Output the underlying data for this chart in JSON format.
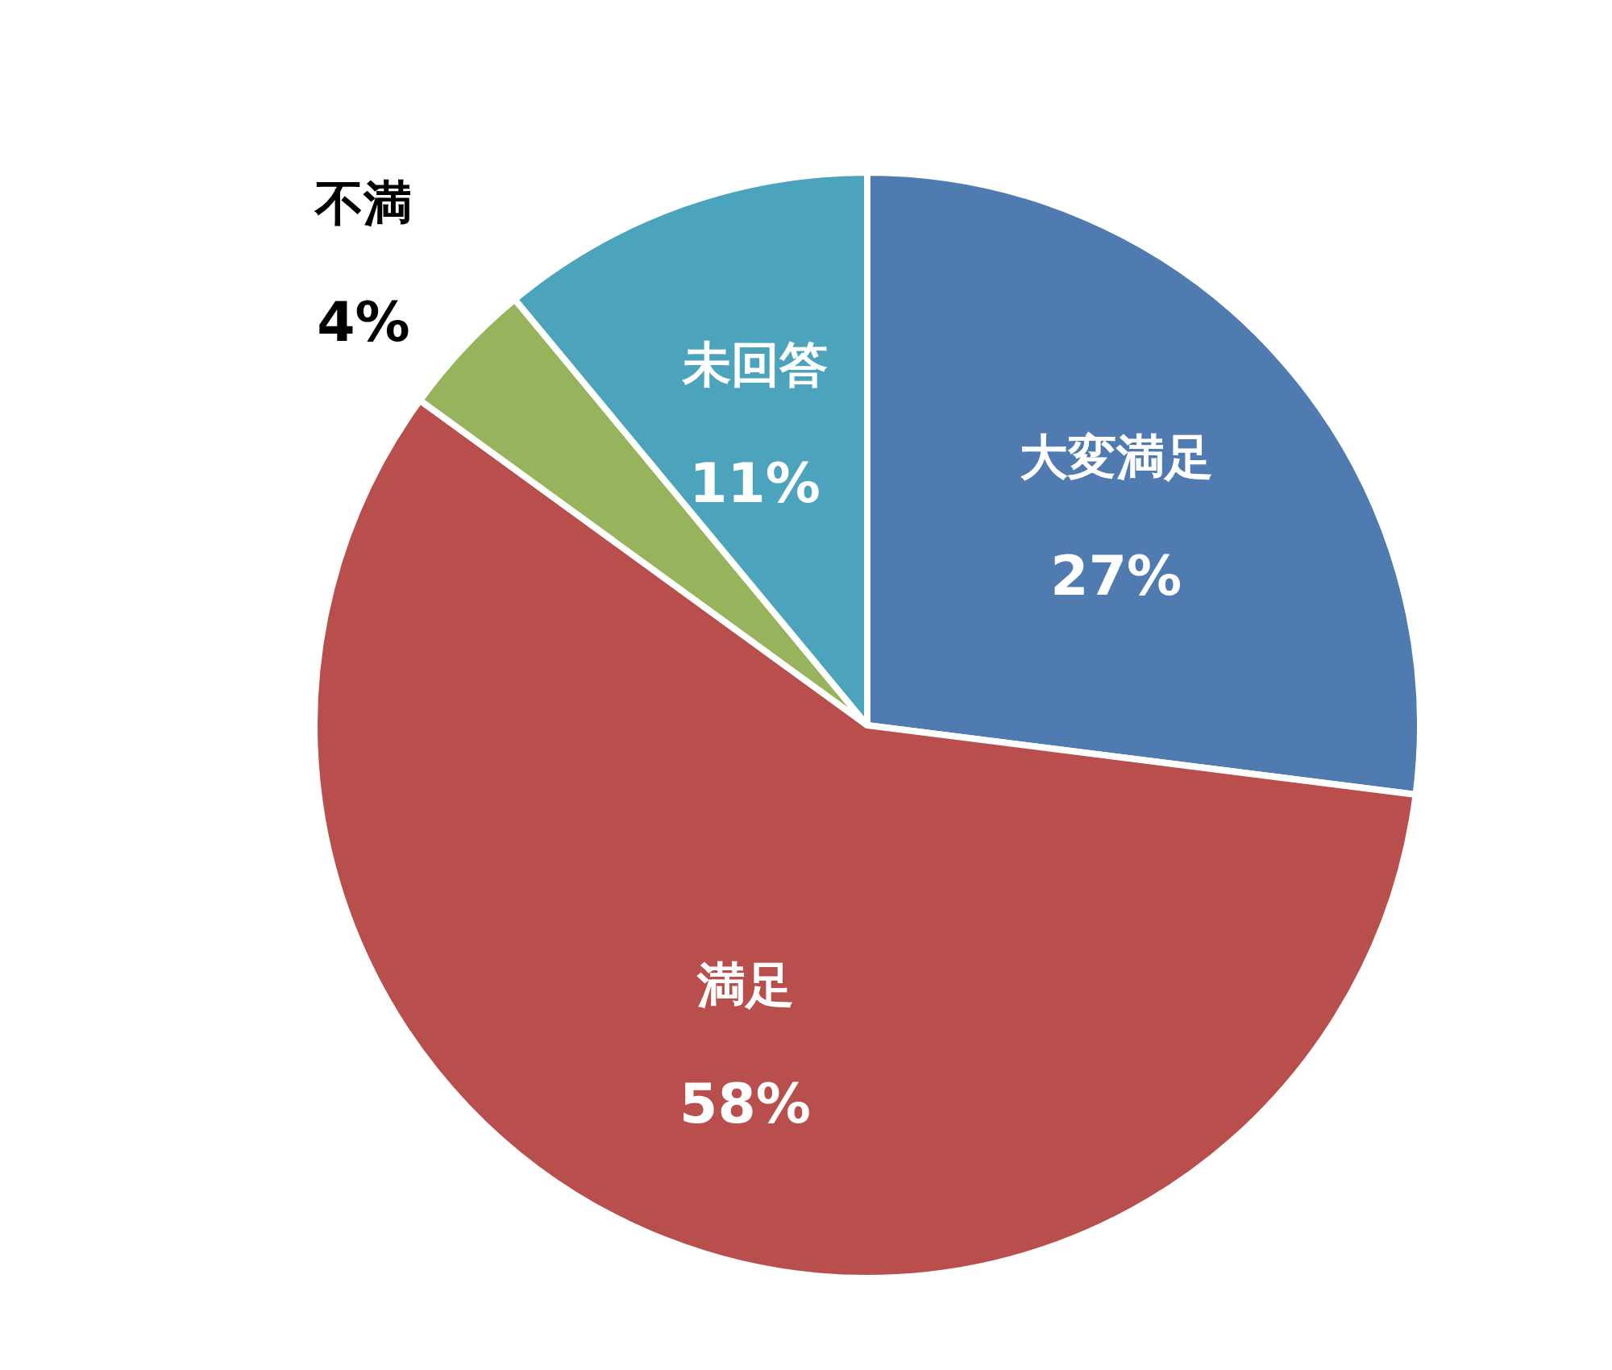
{
  "chart_data": {
    "type": "pie",
    "categories": [
      "大変満足",
      "満足",
      "不満",
      "未回答"
    ],
    "values": [
      27,
      58,
      4,
      11
    ],
    "colors": [
      "#4f7bb0",
      "#b94f4c",
      "#97b35b",
      "#4ba3bc"
    ],
    "value_labels": [
      "27%",
      "58%",
      "4%",
      "11%"
    ]
  }
}
